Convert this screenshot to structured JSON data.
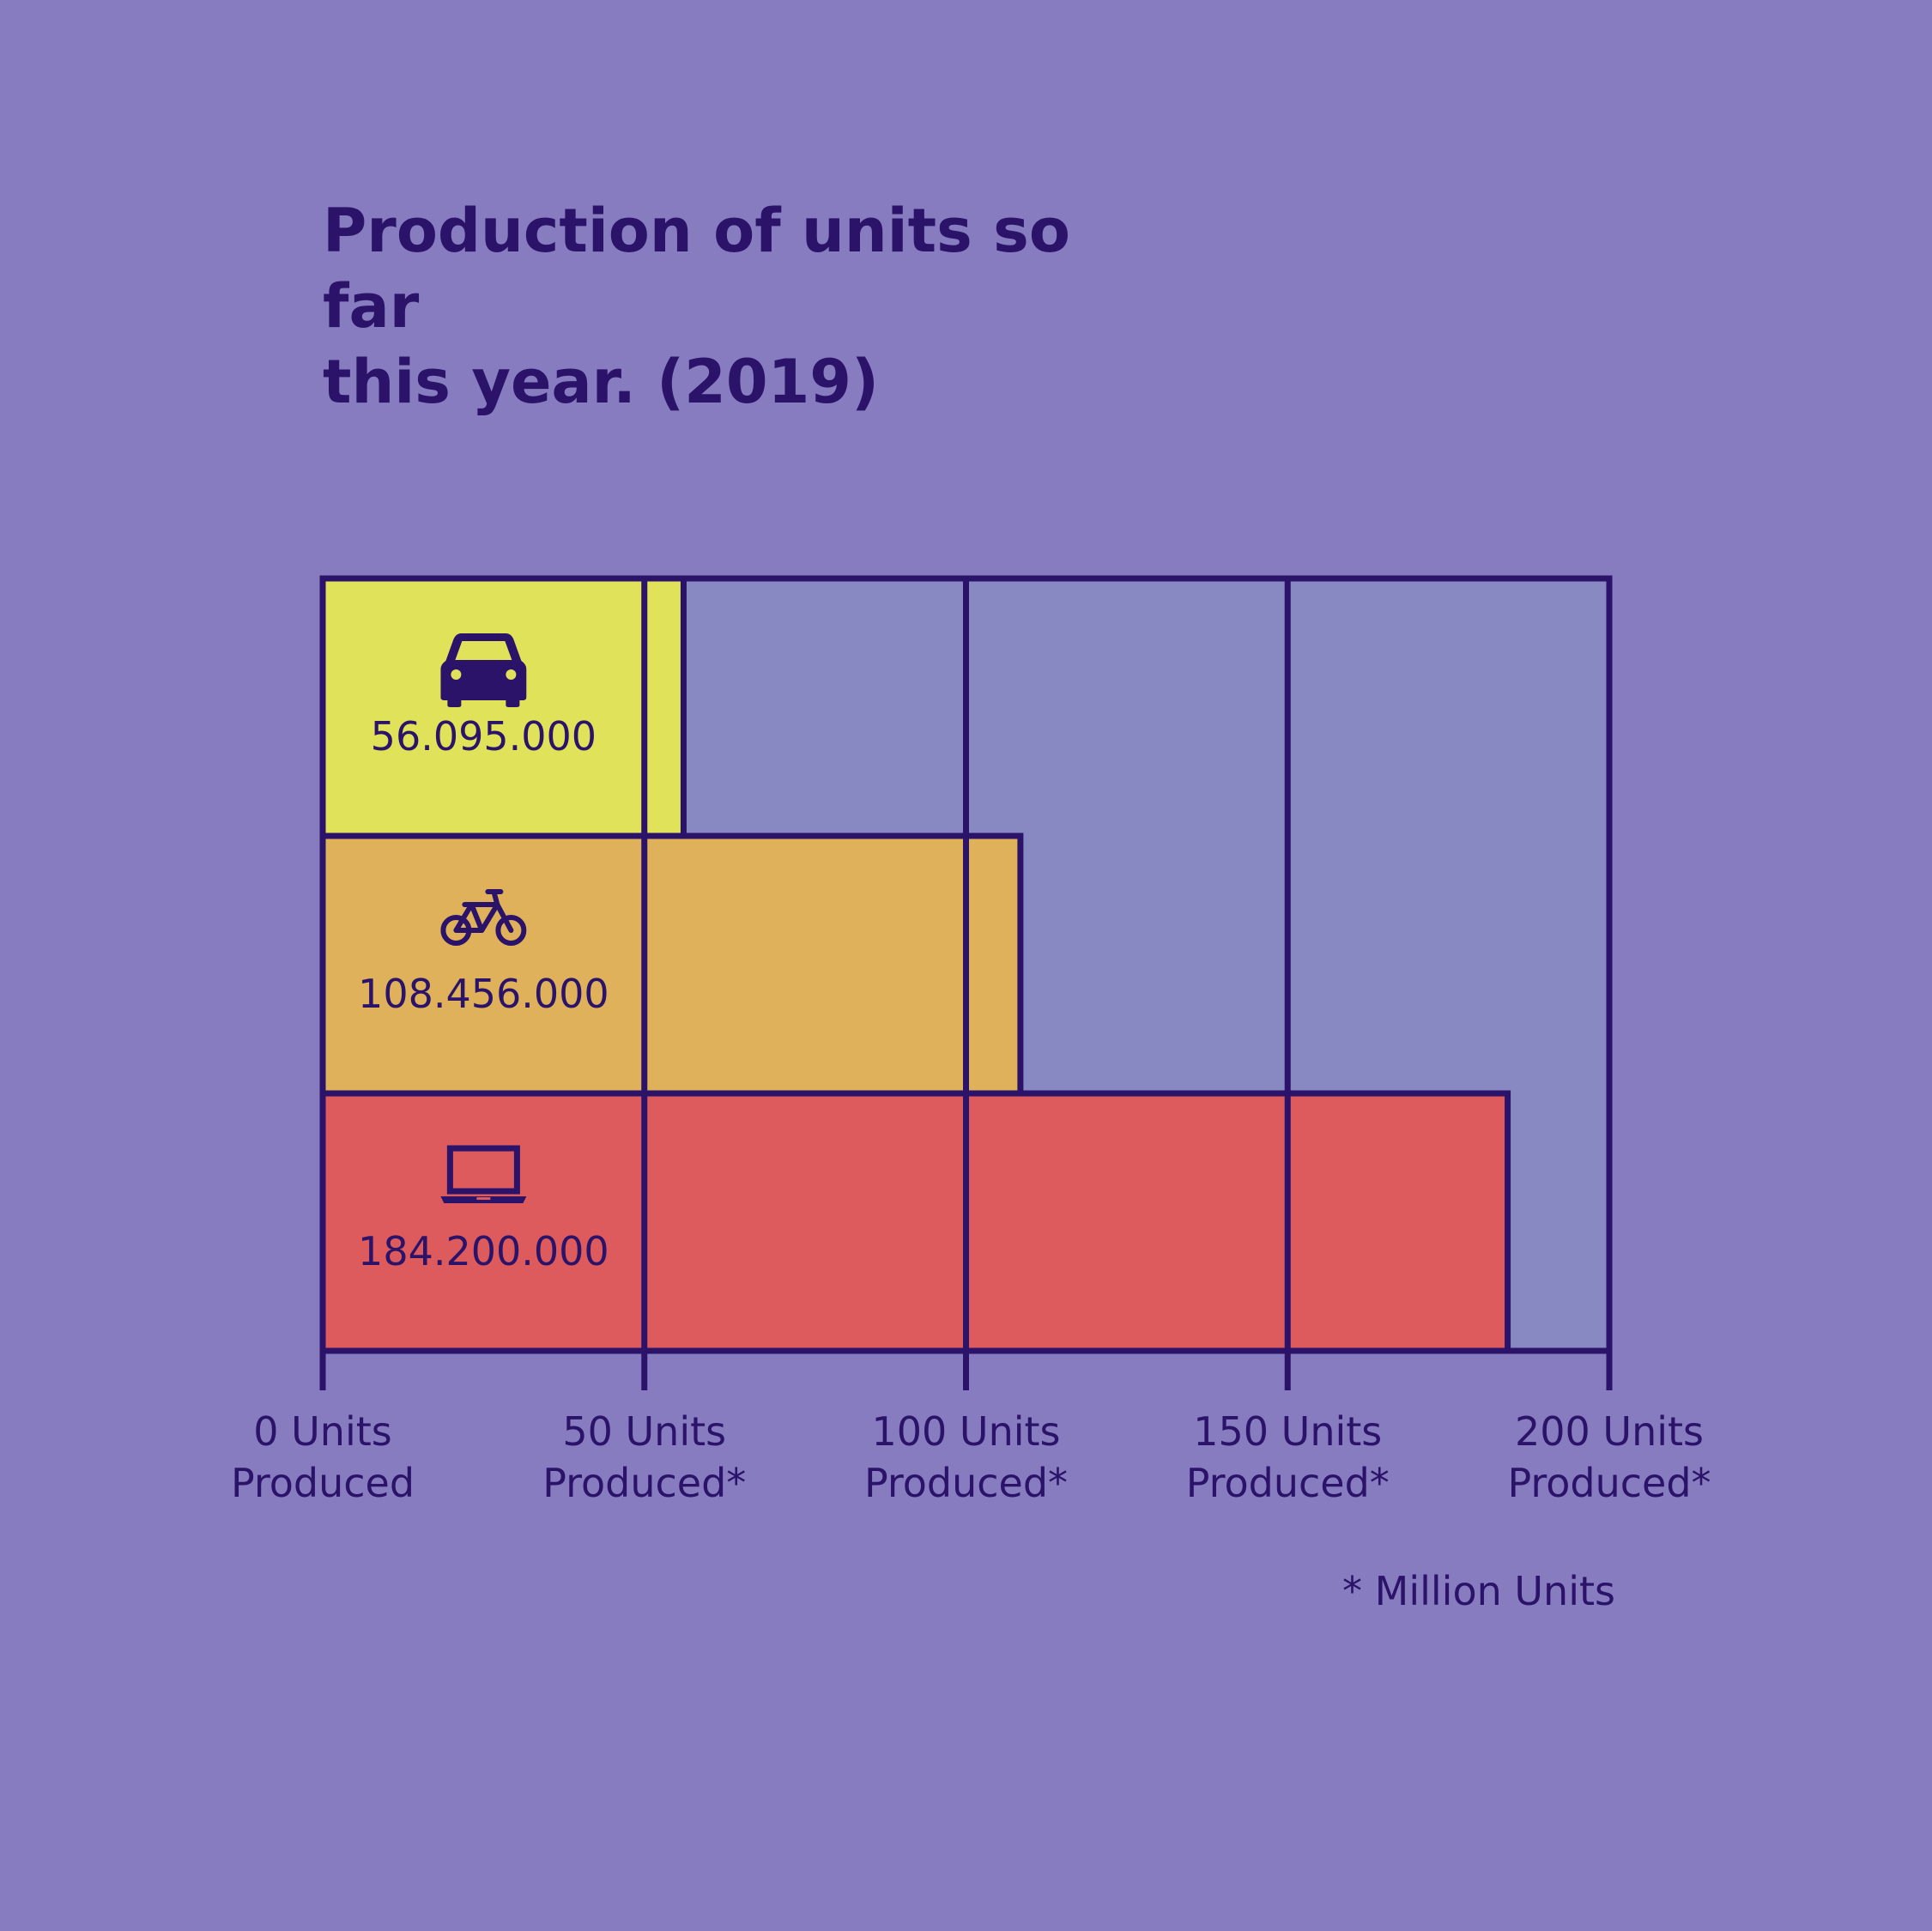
{
  "title": {
    "line1": "Production of units so far",
    "line2": "this year. (2019)"
  },
  "footnote": "* Million Units",
  "colors": {
    "background": "#877cbf",
    "plot_background": "#8888c2",
    "outline": "#2a1368",
    "text": "#2a1368"
  },
  "chart_data": {
    "type": "bar",
    "orientation": "horizontal",
    "xlim": [
      0,
      200
    ],
    "x_ticks": [
      {
        "value": 0,
        "line1": "0 Units",
        "line2": "Produced"
      },
      {
        "value": 50,
        "line1": "50 Units",
        "line2": "Produced*"
      },
      {
        "value": 100,
        "line1": "100 Units",
        "line2": "Produced*"
      },
      {
        "value": 150,
        "line1": "150 Units",
        "line2": "Produced*"
      },
      {
        "value": 200,
        "line1": "200 Units",
        "line2": "Produced*"
      }
    ],
    "grid": true,
    "bars": [
      {
        "icon": "car-icon",
        "label": "56.095.000",
        "value": 56.095,
        "color": "#e0e25a"
      },
      {
        "icon": "bicycle-icon",
        "label": "108.456.000",
        "value": 108.456,
        "color": "#dfb15b"
      },
      {
        "icon": "laptop-icon",
        "label": "184.200.000",
        "value": 184.2,
        "color": "#dd5b5c"
      }
    ]
  }
}
